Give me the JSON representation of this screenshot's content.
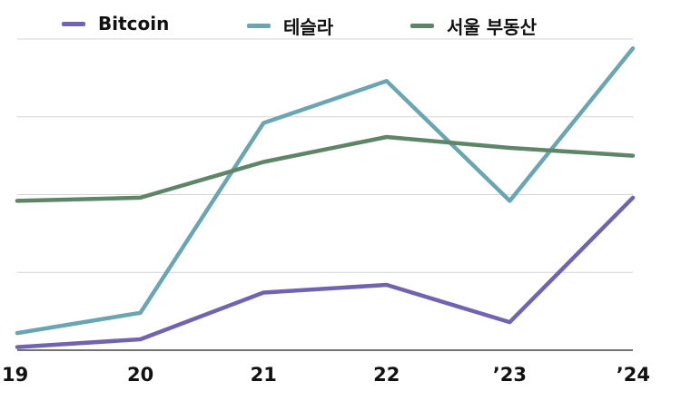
{
  "chart_data": {
    "type": "line",
    "title": "",
    "xlabel": "",
    "ylabel": "",
    "categories": [
      "19",
      "20",
      "21",
      "22",
      "’23",
      "’24"
    ],
    "ylim": [
      0,
      100
    ],
    "grid": true,
    "legend_position": "top",
    "series": [
      {
        "name": "Bitcoin",
        "color": "#7263b0",
        "values": [
          1,
          3.5,
          18.5,
          21,
          9,
          49
        ]
      },
      {
        "name": "테슬라",
        "color": "#6aa5b2",
        "values": [
          5.5,
          12,
          73,
          86.5,
          48,
          97
        ]
      },
      {
        "name": "서울 부동산",
        "color": "#5e8568",
        "values": [
          48,
          49,
          60.5,
          68.5,
          65,
          62.5
        ]
      }
    ]
  }
}
